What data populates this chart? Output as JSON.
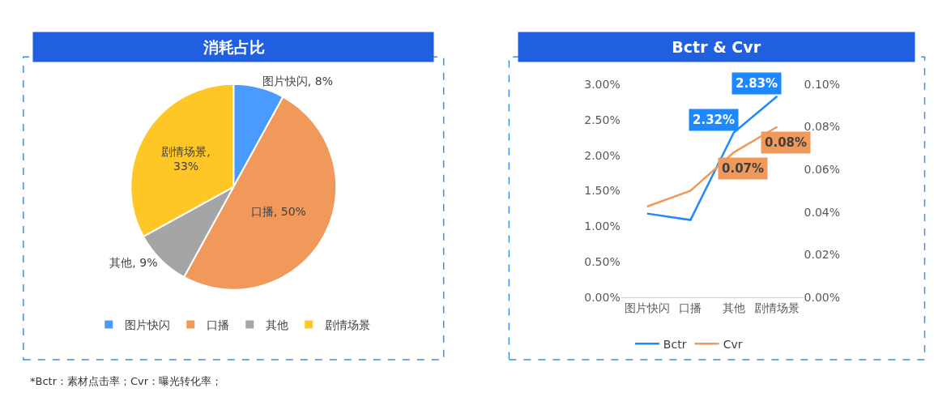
{
  "chart_data": [
    {
      "type": "pie",
      "title": "消耗占比",
      "categories": [
        "图片快闪",
        "口播",
        "其他",
        "剧情场景"
      ],
      "values": [
        8,
        50,
        9,
        33
      ],
      "colors": [
        "#4a9bff",
        "#f0995a",
        "#a5a5a5",
        "#ffc726"
      ],
      "value_labels": [
        "图片快闪, 8%",
        "口播, 50%",
        "其他, 9%",
        "剧情场景,\n33%"
      ],
      "legend": "bottom",
      "annotations": [
        "*Bctr：素材点击率；Cvr：曝光转化率；"
      ]
    },
    {
      "type": "line",
      "title": "Bctr & Cvr",
      "categories": [
        "图片快闪",
        "口播",
        "其他",
        "剧情场景"
      ],
      "series": [
        {
          "name": "Bctr",
          "color": "#1e88ff",
          "values": [
            1.18,
            1.09,
            2.32,
            2.83
          ],
          "value_labels": [
            null,
            null,
            "2.32%",
            "2.83%"
          ]
        },
        {
          "name": "Cvr",
          "color": "#f0995a",
          "axis": "y2",
          "values": [
            0.0426,
            0.05,
            0.068,
            0.08
          ],
          "value_labels": [
            null,
            null,
            "0.07%",
            "0.08%"
          ]
        }
      ],
      "ylim": [
        0,
        3
      ],
      "yticks": [
        {
          "value": 0,
          "label": "0.00%"
        },
        {
          "value": 0.5,
          "label": "0.50%"
        },
        {
          "value": 1,
          "label": "1.00%"
        },
        {
          "value": 1.5,
          "label": "1.50%"
        },
        {
          "value": 2,
          "label": "2.00%"
        },
        {
          "value": 2.5,
          "label": "2.50%"
        },
        {
          "value": 3,
          "label": "3.00%"
        }
      ],
      "y2lim": [
        0,
        0.1
      ],
      "y2ticks": [
        {
          "value": 0,
          "label": "0.00%"
        },
        {
          "value": 0.02,
          "label": "0.02%"
        },
        {
          "value": 0.04,
          "label": "0.04%"
        },
        {
          "value": 0.06,
          "label": "0.06%"
        },
        {
          "value": 0.08,
          "label": "0.08%"
        },
        {
          "value": 0.1,
          "label": "0.10%"
        }
      ],
      "legend": "bottom",
      "marker": "none",
      "line_style": "solid"
    }
  ]
}
